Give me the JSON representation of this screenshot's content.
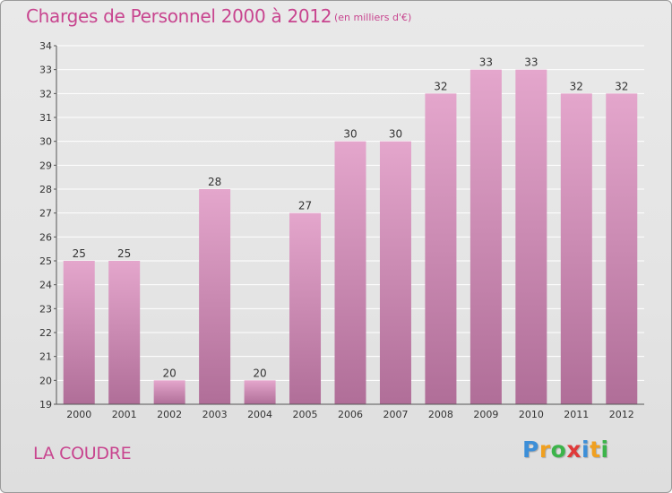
{
  "chart_data": {
    "type": "bar",
    "title": "Charges de Personnel 2000 à 2012",
    "subtitle": "(en milliers d'€)",
    "xlabel": "",
    "ylabel": "",
    "categories": [
      "2000",
      "2001",
      "2002",
      "2003",
      "2004",
      "2005",
      "2006",
      "2007",
      "2008",
      "2009",
      "2010",
      "2011",
      "2012"
    ],
    "values": [
      25,
      25,
      20,
      28,
      20,
      27,
      30,
      30,
      32,
      33,
      33,
      32,
      32
    ],
    "ylim": [
      19,
      34
    ],
    "yticks": [
      19,
      20,
      21,
      22,
      23,
      24,
      25,
      26,
      27,
      28,
      29,
      30,
      31,
      32,
      33,
      34
    ],
    "grid": true,
    "legend": "none",
    "colors": {
      "bar_top": "#e4a6cc",
      "bar_bottom": "#b06e98",
      "grid": "#ffffff",
      "axis": "#555555",
      "text": "#333333",
      "accent": "#c8458f"
    }
  },
  "footer": {
    "commune": "LA COUDRE",
    "brand": [
      {
        "ch": "P",
        "color": "#3d8fd8"
      },
      {
        "ch": "r",
        "color": "#f0a020"
      },
      {
        "ch": "o",
        "color": "#3cb44a"
      },
      {
        "ch": "x",
        "color": "#e03a3a"
      },
      {
        "ch": "i",
        "color": "#3d8fd8"
      },
      {
        "ch": "t",
        "color": "#f0a020"
      },
      {
        "ch": "i",
        "color": "#3cb44a"
      }
    ]
  }
}
